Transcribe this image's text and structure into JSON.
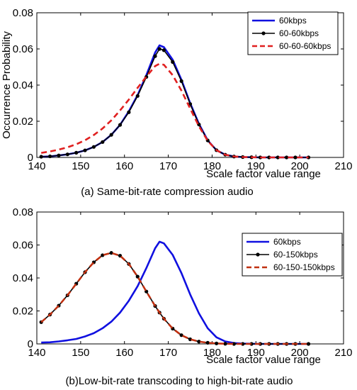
{
  "chart_data": [
    {
      "type": "line",
      "caption": "(a) Same-bit-rate compression audio",
      "xlabel": "Scale factor value range",
      "ylabel": "Occurrence Probability",
      "xlim": [
        140,
        210
      ],
      "ylim": [
        0,
        0.08
      ],
      "xticks": [
        140,
        150,
        160,
        170,
        180,
        190,
        200,
        210
      ],
      "yticks": [
        0,
        0.02,
        0.04,
        0.06,
        0.08
      ],
      "ytick_labels": [
        "0",
        "0.02",
        "0.04",
        "0.06",
        "0.08"
      ],
      "grid": false,
      "legend_position": "top-right",
      "x": [
        141,
        143,
        145,
        147,
        149,
        151,
        153,
        155,
        157,
        159,
        161,
        163,
        165,
        167,
        168,
        169,
        171,
        173,
        175,
        177,
        179,
        181,
        183,
        185,
        187,
        189,
        191,
        193,
        195,
        197,
        199,
        202
      ],
      "series": [
        {
          "name": "60kbps",
          "color": "#1010e0",
          "style": "solid",
          "marker": "none",
          "values": [
            0.0004,
            0.0006,
            0.0011,
            0.0017,
            0.0026,
            0.0039,
            0.0058,
            0.0085,
            0.0125,
            0.018,
            0.0255,
            0.0345,
            0.0455,
            0.058,
            0.062,
            0.061,
            0.054,
            0.043,
            0.03,
            0.0185,
            0.0095,
            0.004,
            0.0015,
            0.0005,
            0.0002,
            0.0001,
            0,
            0,
            0,
            0,
            0,
            0
          ]
        },
        {
          "name": "60-60kbps",
          "color": "#000000",
          "style": "solid",
          "marker": "dot",
          "values": [
            0.0004,
            0.0006,
            0.0011,
            0.0017,
            0.0026,
            0.0039,
            0.0058,
            0.0085,
            0.0125,
            0.018,
            0.025,
            0.034,
            0.0445,
            0.056,
            0.06,
            0.0593,
            0.0528,
            0.0422,
            0.0295,
            0.0182,
            0.0094,
            0.004,
            0.0015,
            0.0005,
            0.0002,
            0.0001,
            0,
            0,
            0,
            0,
            0,
            0
          ]
        },
        {
          "name": "60-60-60kbps",
          "color": "#e02020",
          "style": "dashed",
          "marker": "none",
          "values": [
            0.0025,
            0.0033,
            0.0043,
            0.0056,
            0.0073,
            0.0095,
            0.0124,
            0.016,
            0.0205,
            0.026,
            0.032,
            0.0385,
            0.0447,
            0.0505,
            0.0518,
            0.0512,
            0.0455,
            0.037,
            0.027,
            0.0172,
            0.0092,
            0.004,
            0.0015,
            0.0005,
            0.0002,
            0.0001,
            0,
            0,
            0,
            0,
            0,
            0
          ]
        }
      ]
    },
    {
      "type": "line",
      "caption": "(b)Low-bit-rate transcoding to high-bit-rate audio",
      "xlabel": "Scale factor value range",
      "ylabel": "",
      "xlim": [
        140,
        210
      ],
      "ylim": [
        0,
        0.08
      ],
      "xticks": [
        140,
        150,
        160,
        170,
        180,
        190,
        200,
        210
      ],
      "yticks": [
        0,
        0.02,
        0.04,
        0.06,
        0.08
      ],
      "ytick_labels": [
        "0",
        "0.02",
        "0.04",
        "0.06",
        "0.08"
      ],
      "grid": false,
      "legend_position": "top-right",
      "x": [
        141,
        143,
        145,
        147,
        149,
        151,
        153,
        155,
        157,
        159,
        161,
        163,
        165,
        167,
        168,
        169,
        171,
        173,
        175,
        177,
        179,
        181,
        183,
        185,
        187,
        189,
        191,
        193,
        195,
        197,
        199,
        202
      ],
      "series": [
        {
          "name": "60kbps",
          "color": "#1010e0",
          "style": "solid",
          "marker": "none",
          "values": [
            0.0008,
            0.001,
            0.0015,
            0.0022,
            0.003,
            0.0045,
            0.0065,
            0.0095,
            0.0135,
            0.019,
            0.0262,
            0.035,
            0.046,
            0.058,
            0.062,
            0.061,
            0.054,
            0.043,
            0.03,
            0.0185,
            0.0095,
            0.004,
            0.0015,
            0.0005,
            0.0002,
            0.0001,
            0,
            0,
            0,
            0,
            0,
            0
          ]
        },
        {
          "name": "60-150kbps",
          "color": "#000000",
          "style": "solid",
          "marker": "dot",
          "values": [
            0.0132,
            0.0178,
            0.0232,
            0.0295,
            0.0365,
            0.0435,
            0.0495,
            0.0538,
            0.0552,
            0.0535,
            0.0485,
            0.0408,
            0.0318,
            0.023,
            0.019,
            0.0153,
            0.0093,
            0.0053,
            0.0028,
            0.0014,
            0.0007,
            0.0003,
            0.0001,
            0,
            0,
            0,
            0,
            0,
            0,
            0,
            0,
            0
          ]
        },
        {
          "name": "60-150-150kbps",
          "color": "#c03010",
          "style": "dashed",
          "marker": "none",
          "values": [
            0.0132,
            0.0178,
            0.0232,
            0.0295,
            0.0365,
            0.0435,
            0.0495,
            0.0538,
            0.0552,
            0.0535,
            0.0485,
            0.0408,
            0.0318,
            0.023,
            0.019,
            0.0153,
            0.0093,
            0.0053,
            0.0028,
            0.0014,
            0.0007,
            0.0003,
            0.0001,
            0,
            0,
            0,
            0,
            0,
            0,
            0,
            0,
            0
          ]
        }
      ]
    }
  ]
}
